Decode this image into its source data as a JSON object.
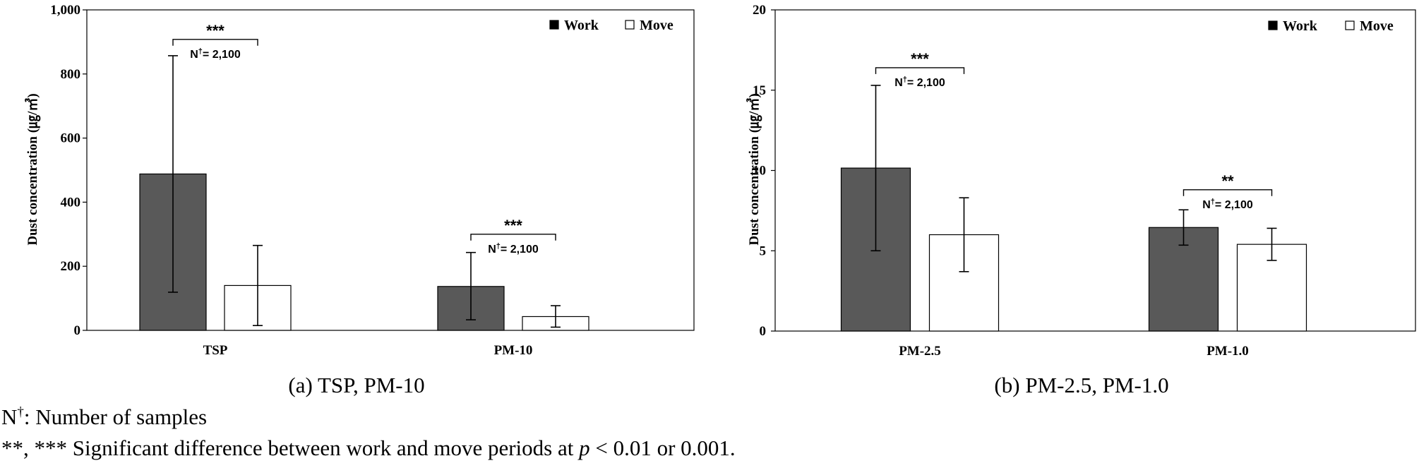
{
  "chart_data": [
    {
      "type": "bar",
      "caption": "(a) TSP, PM-10",
      "ylabel": "Dust concentration (㎍/㎥)",
      "ylim": [
        0,
        1000
      ],
      "yticks": [
        0,
        200,
        400,
        600,
        800,
        1000
      ],
      "ytick_labels": [
        "0",
        "200",
        "400",
        "600",
        "800",
        "1,000"
      ],
      "categories": [
        "TSP",
        "PM-10"
      ],
      "legend_position": "top-right",
      "series": [
        {
          "name": "Work",
          "color": "#595959",
          "values": [
            488,
            137
          ],
          "errors": [
            [
              119,
              857
            ],
            [
              33,
              243
            ]
          ]
        },
        {
          "name": "Move",
          "color": "#ffffff",
          "values": [
            140,
            43
          ],
          "errors": [
            [
              15,
              265
            ],
            [
              10,
              77
            ]
          ]
        }
      ],
      "annotations": [
        {
          "category": 0,
          "sig": "***",
          "n_prefix": "N",
          "n_dagger": "†",
          "n_value": "= 2,100",
          "bracket_y": 908
        },
        {
          "category": 1,
          "sig": "***",
          "n_prefix": "N",
          "n_dagger": "†",
          "n_value": "= 2,100",
          "bracket_y": 300
        }
      ]
    },
    {
      "type": "bar",
      "caption": "(b) PM-2.5, PM-1.0",
      "ylabel": "Dust concentration (㎍/㎥)",
      "ylim": [
        0,
        20
      ],
      "yticks": [
        0,
        5,
        10,
        15,
        20
      ],
      "ytick_labels": [
        "0",
        "5",
        "10",
        "15",
        "20"
      ],
      "categories": [
        "PM-2.5",
        "PM-1.0"
      ],
      "legend_position": "top-right",
      "series": [
        {
          "name": "Work",
          "color": "#595959",
          "values": [
            10.15,
            6.45
          ],
          "errors": [
            [
              5.0,
              15.3
            ],
            [
              5.35,
              7.55
            ]
          ]
        },
        {
          "name": "Move",
          "color": "#ffffff",
          "values": [
            6.0,
            5.4
          ],
          "errors": [
            [
              3.7,
              8.3
            ],
            [
              4.4,
              6.4
            ]
          ]
        }
      ],
      "annotations": [
        {
          "category": 0,
          "sig": "***",
          "n_prefix": "N",
          "n_dagger": "†",
          "n_value": "= 2,100",
          "bracket_y": 16.4
        },
        {
          "category": 1,
          "sig": "**",
          "n_prefix": "N",
          "n_dagger": "†",
          "n_value": "= 2,100",
          "bracket_y": 8.8
        }
      ]
    }
  ],
  "footnotes": {
    "n_symbol": "N",
    "n_dagger": "†",
    "n_text": ": Number of samples",
    "sig_text_pre": "**, *** Significant difference between work and move periods at ",
    "sig_p": "p",
    "sig_text_post": " < 0.01 or 0.001."
  }
}
